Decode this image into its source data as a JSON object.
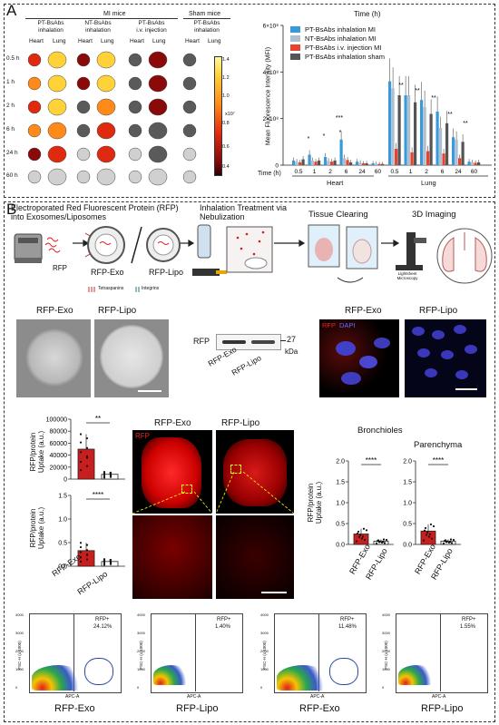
{
  "panel_a": {
    "letter": "A",
    "group_mi": "MI mice",
    "group_sham": "Sham mice",
    "col_headers": [
      {
        "line1": "PT-BsAbs",
        "line2": "inhalation"
      },
      {
        "line1": "NT-BsAbs",
        "line2": "inhalation"
      },
      {
        "line1": "PT-BsAbs",
        "line2": "i.v. injection"
      },
      {
        "line1": "PT-BsAbs",
        "line2": "inhalation"
      }
    ],
    "organ_heart": "Heart",
    "organ_lung": "Lung",
    "row_labels": [
      "0.5 h",
      "1 h",
      "2 h",
      "6 h",
      "24 h",
      "60 h"
    ],
    "colorbar_ticks": [
      "1.4",
      "1.2",
      "1.0",
      "0.8",
      "0.6",
      "0.4"
    ],
    "colorbar_unit": "x10⁷",
    "chart_title": "Time (h)"
  },
  "chart_data": {
    "type": "bar",
    "title": "Time (h)",
    "ylabel": "Mean Fluorescence Intensity (MFI)",
    "xlabel": "Time (h)",
    "ylim": [
      0,
      600000000
    ],
    "yticks": [
      "0",
      "2×10⁸",
      "4×10⁸",
      "6×10⁸"
    ],
    "groups": [
      "Heart",
      "Lung"
    ],
    "categories": [
      "0.5",
      "1",
      "2",
      "6",
      "24",
      "60"
    ],
    "legend_position": "top-right",
    "series": [
      {
        "name": "PT-BsAbs inhalation MI",
        "color": "#3a9ad9",
        "heart": [
          20000000,
          45000000,
          35000000,
          110000000,
          15000000,
          8000000
        ],
        "lung": [
          360000000,
          300000000,
          280000000,
          230000000,
          120000000,
          15000000
        ]
      },
      {
        "name": "NT-BsAbs inhalation MI",
        "color": "#aebfd0",
        "heart": [
          15000000,
          20000000,
          18000000,
          30000000,
          10000000,
          6000000
        ],
        "lung": [
          330000000,
          300000000,
          250000000,
          160000000,
          110000000,
          12000000
        ]
      },
      {
        "name": "PT-BsAbs i.v. injection MI",
        "color": "#e8432e",
        "heart": [
          12000000,
          15000000,
          15000000,
          22000000,
          8000000,
          5000000
        ],
        "lung": [
          70000000,
          55000000,
          60000000,
          50000000,
          30000000,
          10000000
        ]
      },
      {
        "name": "PT-BsAbs inhalation sham",
        "color": "#555555",
        "heart": [
          25000000,
          20000000,
          20000000,
          12000000,
          8000000,
          5000000
        ],
        "lung": [
          300000000,
          270000000,
          220000000,
          180000000,
          100000000,
          12000000
        ]
      }
    ],
    "significance": [
      "*",
      "*",
      "*",
      "***",
      "**",
      "**",
      "**",
      "**",
      "**"
    ]
  },
  "panel_b": {
    "letter": "B",
    "step1": "Electroporated Red Fluorescent Protein (RFP) into Exosomes/Liposomes",
    "step2": "Inhalation Treatment via Nebulization",
    "step3": "Tissue Clearing",
    "step4": "3D Imaging",
    "rfp_label": "RFP",
    "rfp_exo": "RFP-Exo",
    "rfp_lipo": "RFP-Lipo",
    "tetraspanins": "Tetraspanins",
    "integrins": "Integrins",
    "microscope": "Lightsheet Microscopy",
    "western_rfp": "RFP",
    "western_size": "27",
    "western_unit": "kDa",
    "fluor_rfp": "RFP",
    "fluor_dapi": "DAPI",
    "uptake_label": "RFP/protein Uptake (a.u.)",
    "top_chart_ticks": [
      "100000",
      "80000",
      "60000",
      "40000",
      "20000",
      "0"
    ],
    "top_sig": "**",
    "bottom_chart_ticks": [
      "1.5",
      "1.0",
      "0.5",
      "0.0"
    ],
    "bottom_sig": "****",
    "bronchioles": "Bronchioles",
    "parenchyma": "Parenchyma",
    "right_ticks": [
      "2.0",
      "1.5",
      "1.0",
      "0.5",
      "0.0"
    ],
    "right_sig": "****"
  },
  "uptake_data": {
    "top_bar": [
      {
        "label": "RFP-Exo",
        "value": 50000
      },
      {
        "label": "RFP-Lipo",
        "value": 8000
      }
    ],
    "bottom_bar": [
      {
        "label": "RFP-Exo",
        "value": 0.33
      },
      {
        "label": "RFP-Lipo",
        "value": 0.1
      }
    ],
    "bronchioles": [
      {
        "label": "RFP-Exo",
        "value": 0.25
      },
      {
        "label": "RFP-Lipo",
        "value": 0.08
      }
    ],
    "parenchyma": [
      {
        "label": "RFP-Exo",
        "value": 0.32
      },
      {
        "label": "RFP-Lipo",
        "value": 0.08
      }
    ]
  },
  "flow": {
    "ylabel": "FSC-H (x 1000)",
    "xlabel": "APC-A",
    "yticks": [
      "4000",
      "3000",
      "2000",
      "1000",
      "0"
    ],
    "plots": [
      {
        "gate_label": "RFP+",
        "percent": "24.12%",
        "caption": "RFP-Exo"
      },
      {
        "gate_label": "RFP+",
        "percent": "1.40%",
        "caption": "RFP-Lipo"
      },
      {
        "gate_label": "RFP+",
        "percent": "11.48%",
        "caption": "RFP-Exo"
      },
      {
        "gate_label": "RFP+",
        "percent": "1.55%",
        "caption": "RFP-Lipo"
      }
    ]
  }
}
